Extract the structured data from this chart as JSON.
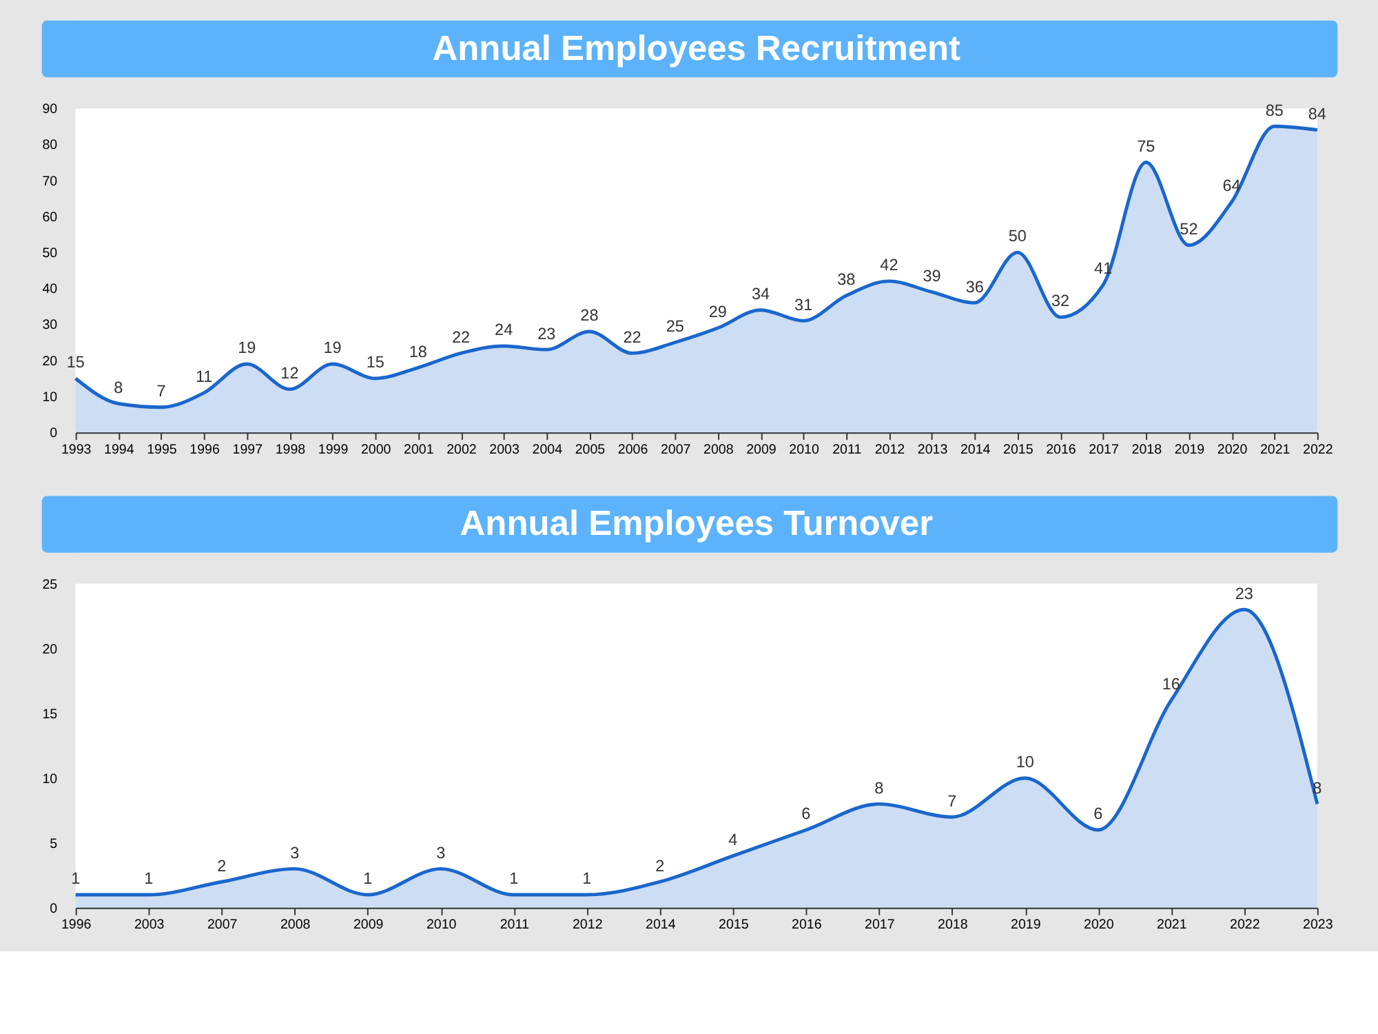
{
  "chart_data": [
    {
      "type": "area",
      "title": "Annual Employees Recruitment",
      "categories": [
        "1993",
        "1994",
        "1995",
        "1996",
        "1997",
        "1998",
        "1999",
        "2000",
        "2001",
        "2002",
        "2003",
        "2004",
        "2005",
        "2006",
        "2007",
        "2008",
        "2009",
        "2010",
        "2011",
        "2012",
        "2013",
        "2014",
        "2015",
        "2016",
        "2017",
        "2018",
        "2019",
        "2020",
        "2021",
        "2022"
      ],
      "values": [
        15,
        8,
        7,
        11,
        19,
        12,
        19,
        15,
        18,
        22,
        24,
        23,
        28,
        22,
        25,
        29,
        34,
        31,
        38,
        42,
        39,
        36,
        50,
        32,
        41,
        75,
        52,
        64,
        85,
        84
      ],
      "color": "#1a66cc",
      "ylim": [
        0,
        90
      ],
      "yticks": [
        0,
        10,
        20,
        30,
        40,
        50,
        60,
        70,
        80,
        90
      ],
      "grid": false,
      "data_labels": true
    },
    {
      "type": "area",
      "title": "Annual Employees Turnover",
      "categories": [
        "1996",
        "2003",
        "2007",
        "2008",
        "2009",
        "2010",
        "2011",
        "2012",
        "2014",
        "2015",
        "2016",
        "2017",
        "2018",
        "2019",
        "2020",
        "2021",
        "2022",
        "2023"
      ],
      "values": [
        1,
        1,
        2,
        3,
        1,
        3,
        1,
        1,
        2,
        4,
        6,
        8,
        7,
        10,
        6,
        16,
        23,
        8
      ],
      "color": "#1a66cc",
      "ylim": [
        0,
        25
      ],
      "yticks": [
        0,
        5,
        10,
        15,
        20,
        25
      ],
      "grid": false,
      "data_labels": true
    }
  ]
}
